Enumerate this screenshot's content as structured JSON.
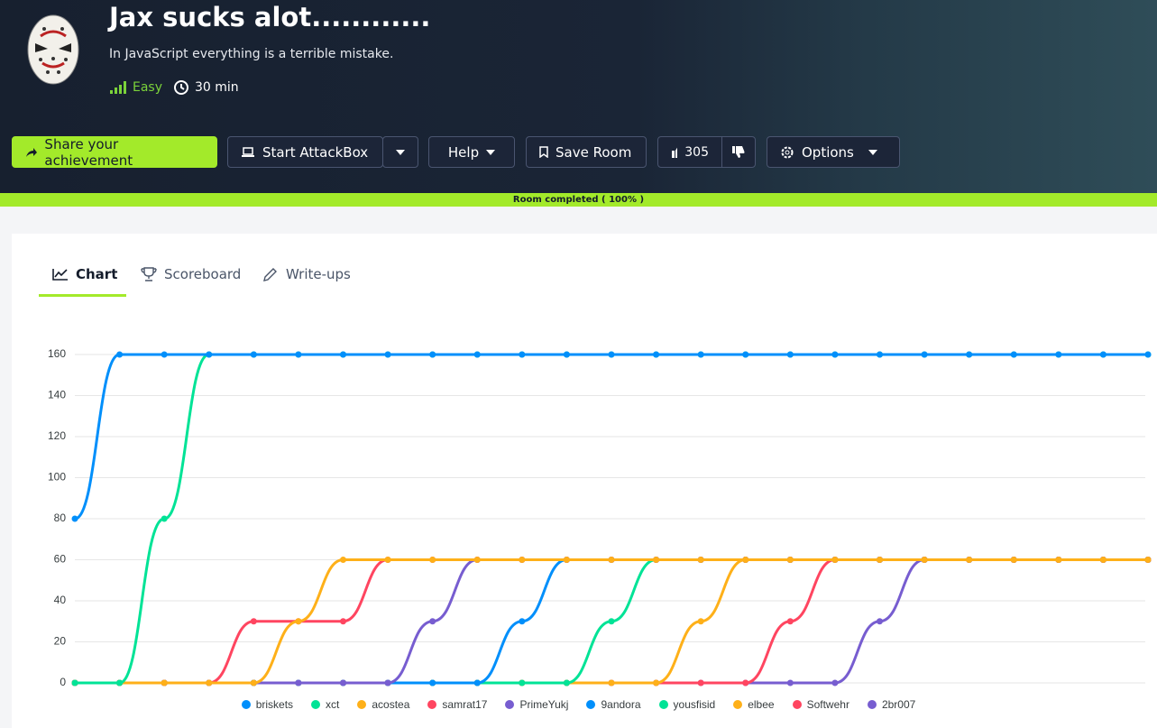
{
  "header": {
    "title": "Jax sucks alot............",
    "description": "In JavaScript everything is a terrible mistake.",
    "difficulty": "Easy",
    "duration": "30 min"
  },
  "buttons": {
    "share": "Share your achievement",
    "attackbox": "Start AttackBox",
    "help": "Help",
    "save": "Save Room",
    "votes": 305,
    "options": "Options"
  },
  "progress": "Room completed ( 100% )",
  "tabs": [
    "Chart",
    "Scoreboard",
    "Write-ups"
  ],
  "chart_data": {
    "type": "line",
    "categories": [
      null,
      null,
      null,
      null,
      null,
      null,
      null,
      null,
      null,
      null,
      null,
      null,
      null,
      null,
      null,
      null,
      null,
      null,
      null,
      null,
      null,
      null,
      null,
      null,
      null
    ],
    "ylim": [
      0,
      160
    ],
    "yticks": [
      0,
      20,
      40,
      60,
      80,
      100,
      120,
      140,
      160
    ],
    "grid": true,
    "legend": "bottom",
    "series": [
      {
        "name": "briskets",
        "color": "#008ffb",
        "values": [
          80,
          160,
          160,
          160,
          160,
          160,
          160,
          160,
          160,
          160,
          160,
          160,
          160,
          160,
          160,
          160,
          160,
          160,
          160,
          160,
          160,
          160,
          160,
          160,
          160
        ]
      },
      {
        "name": "xct",
        "color": "#00e396",
        "values": [
          0,
          0,
          80,
          160,
          160,
          160,
          160,
          160,
          160,
          160,
          160,
          160,
          160,
          160,
          160,
          160,
          160,
          160,
          160,
          160,
          160,
          160,
          160,
          160,
          160
        ]
      },
      {
        "name": "acostea",
        "color": "#feb019",
        "values": [
          0,
          0,
          0,
          0,
          0,
          30,
          60,
          60,
          60,
          60,
          60,
          60,
          60,
          60,
          60,
          60,
          60,
          60,
          60,
          60,
          60,
          60,
          60,
          60,
          60
        ]
      },
      {
        "name": "samrat17",
        "color": "#ff4560",
        "values": [
          0,
          0,
          0,
          0,
          30,
          30,
          30,
          60,
          60,
          60,
          60,
          60,
          60,
          60,
          60,
          60,
          60,
          60,
          60,
          60,
          60,
          60,
          60,
          60,
          60
        ]
      },
      {
        "name": "PrimeYukj",
        "color": "#775dd0",
        "values": [
          0,
          0,
          0,
          0,
          0,
          0,
          0,
          0,
          30,
          60,
          60,
          60,
          60,
          60,
          60,
          60,
          60,
          60,
          60,
          60,
          60,
          60,
          60,
          60,
          60
        ]
      },
      {
        "name": "9andora",
        "color": "#008ffb",
        "values": [
          0,
          0,
          0,
          0,
          0,
          0,
          0,
          0,
          0,
          0,
          30,
          60,
          60,
          60,
          60,
          60,
          60,
          60,
          60,
          60,
          60,
          60,
          60,
          60,
          60
        ]
      },
      {
        "name": "yousfisid",
        "color": "#00e396",
        "values": [
          0,
          0,
          0,
          0,
          0,
          0,
          0,
          0,
          0,
          0,
          0,
          0,
          30,
          60,
          60,
          60,
          60,
          60,
          60,
          60,
          60,
          60,
          60,
          60,
          60
        ]
      },
      {
        "name": "elbee",
        "color": "#feb019",
        "values": [
          0,
          0,
          0,
          0,
          0,
          0,
          0,
          0,
          0,
          0,
          0,
          0,
          0,
          0,
          30,
          60,
          60,
          60,
          60,
          60,
          60,
          60,
          60,
          60,
          60
        ]
      },
      {
        "name": "Softwehr",
        "color": "#ff4560",
        "values": [
          0,
          0,
          0,
          0,
          0,
          0,
          0,
          0,
          0,
          0,
          0,
          0,
          0,
          0,
          0,
          0,
          30,
          60,
          60,
          60,
          60,
          60,
          60,
          60,
          60
        ]
      },
      {
        "name": "2br007",
        "color": "#775dd0",
        "values": [
          0,
          0,
          0,
          0,
          0,
          0,
          0,
          0,
          0,
          0,
          0,
          0,
          0,
          0,
          0,
          0,
          0,
          0,
          30,
          60,
          60,
          60,
          60,
          60,
          60
        ]
      }
    ]
  }
}
